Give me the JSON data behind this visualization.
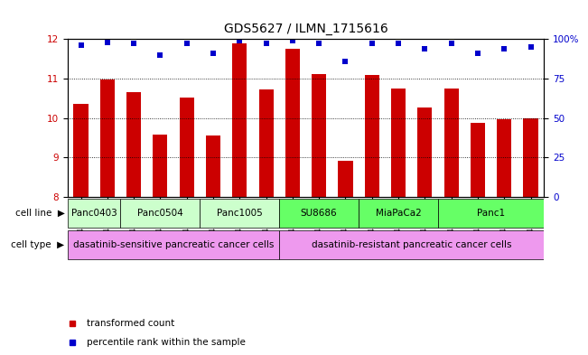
{
  "title": "GDS5627 / ILMN_1715616",
  "samples": [
    "GSM1435684",
    "GSM1435685",
    "GSM1435686",
    "GSM1435687",
    "GSM1435688",
    "GSM1435689",
    "GSM1435690",
    "GSM1435691",
    "GSM1435692",
    "GSM1435693",
    "GSM1435694",
    "GSM1435695",
    "GSM1435696",
    "GSM1435697",
    "GSM1435698",
    "GSM1435699",
    "GSM1435700",
    "GSM1435701"
  ],
  "bar_values": [
    10.35,
    10.97,
    10.65,
    9.58,
    10.53,
    9.55,
    11.88,
    10.73,
    11.75,
    11.12,
    8.92,
    11.1,
    10.75,
    10.27,
    10.75,
    9.88,
    9.97,
    10.0
  ],
  "percentile_values": [
    96,
    98,
    97,
    90,
    97,
    91,
    99,
    97,
    99,
    97,
    86,
    97,
    97,
    94,
    97,
    91,
    94,
    95
  ],
  "bar_color": "#cc0000",
  "dot_color": "#0000cc",
  "ylim_left": [
    8,
    12
  ],
  "ylim_right": [
    0,
    100
  ],
  "yticks_left": [
    8,
    9,
    10,
    11,
    12
  ],
  "yticks_right": [
    0,
    25,
    50,
    75,
    100
  ],
  "cell_lines": [
    {
      "label": "Panc0403",
      "start": 0,
      "end": 1,
      "color": "#ccffcc"
    },
    {
      "label": "Panc0504",
      "start": 2,
      "end": 4,
      "color": "#ccffcc"
    },
    {
      "label": "Panc1005",
      "start": 5,
      "end": 7,
      "color": "#ccffcc"
    },
    {
      "label": "SU8686",
      "start": 8,
      "end": 10,
      "color": "#66ff66"
    },
    {
      "label": "MiaPaCa2",
      "start": 11,
      "end": 13,
      "color": "#66ff66"
    },
    {
      "label": "Panc1",
      "start": 14,
      "end": 17,
      "color": "#66ff66"
    }
  ],
  "cell_types": [
    {
      "label": "dasatinib-sensitive pancreatic cancer cells",
      "start": 0,
      "end": 7,
      "color": "#ee99ee"
    },
    {
      "label": "dasatinib-resistant pancreatic cancer cells",
      "start": 8,
      "end": 17,
      "color": "#ee99ee"
    }
  ],
  "legend_items": [
    {
      "label": "transformed count",
      "color": "#cc0000"
    },
    {
      "label": "percentile rank within the sample",
      "color": "#0000cc"
    }
  ],
  "bar_width": 0.55,
  "background_color": "#ffffff",
  "title_fontsize": 10,
  "tick_fontsize": 6.5,
  "label_fontsize": 7.5,
  "annot_fontsize": 7.5
}
